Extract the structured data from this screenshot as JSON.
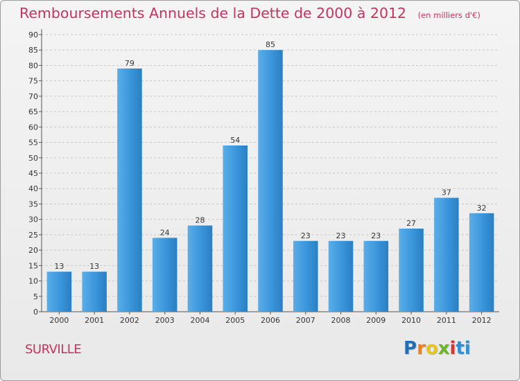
{
  "title": "Remboursements Annuels de la Dette de 2000 à 2012",
  "subtitle": "(en milliers d'€)",
  "commune": "SURVILLE",
  "logo": {
    "letters": [
      "P",
      "r",
      "o",
      "x",
      "i",
      "ti"
    ]
  },
  "colors": {
    "bar": "#3a95da",
    "bar_light": "#5aaee8",
    "bar_dark": "#2b7fc2",
    "title": "#c4345e",
    "grid": "#c8c8c8"
  },
  "chart_data": {
    "type": "bar",
    "title": "Remboursements Annuels de la Dette de 2000 à 2012",
    "xlabel": "",
    "ylabel": "",
    "categories": [
      "2000",
      "2001",
      "2002",
      "2003",
      "2004",
      "2005",
      "2006",
      "2007",
      "2008",
      "2009",
      "2010",
      "2011",
      "2012"
    ],
    "values": [
      13,
      13,
      79,
      24,
      28,
      54,
      85,
      23,
      23,
      23,
      27,
      37,
      32
    ],
    "ylim": [
      0,
      90
    ],
    "yticks": [
      0,
      5,
      10,
      15,
      20,
      25,
      30,
      35,
      40,
      45,
      50,
      55,
      60,
      65,
      70,
      75,
      80,
      85,
      90
    ],
    "grid": true
  }
}
